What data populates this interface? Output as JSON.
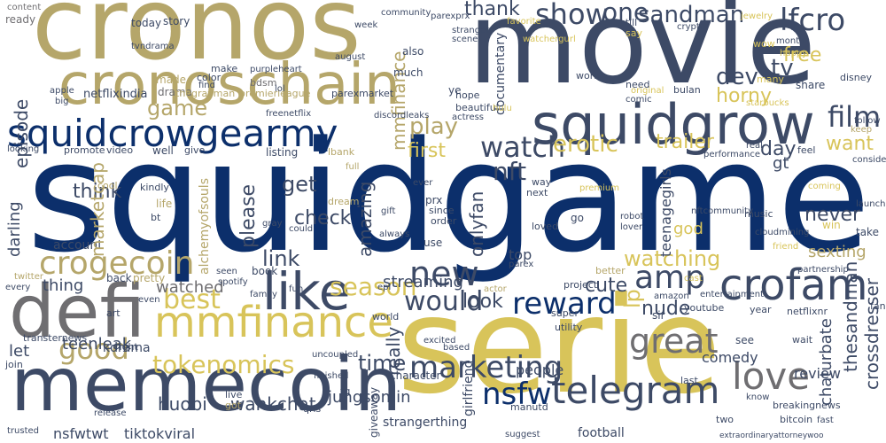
{
  "palette": {
    "navy": "#0c2f6b",
    "slate": "#3d4a66",
    "olive": "#b5a66a",
    "grey": "#6f6e71",
    "gold": "#d8c45a",
    "light_gold": "#e6d98d",
    "background": "#ffffff"
  },
  "words": {
    "squidgame": "squidgame",
    "serie": "serie",
    "movie": "movie",
    "cronos": "cronos",
    "memecoin": "memecoin",
    "cronoschain": "cronoschain",
    "defi": "defi",
    "squidgrow": "squidgrow",
    "squidcrowgearmy": "squidcrowgearmy",
    "like": "like",
    "mmfinance": "mmfinance",
    "crofam": "crofam",
    "telegram": "telegram",
    "crogecoin": "crogecoin",
    "lfcro": "lfcro",
    "tokenomics": "tokenomics",
    "marketing": "marketing",
    "reward": "reward",
    "watch": "watch",
    "new": "new",
    "nsfw": "nsfw",
    "love": "love",
    "great": "great",
    "season": "season",
    "amp": "amp",
    "film": "film",
    "show": "show",
    "good": "good",
    "best": "best",
    "would": "would",
    "game": "game",
    "episode": "episode",
    "play": "play",
    "nft": "nft",
    "thesandman": "thesandman",
    "sandman": "sandman",
    "erotic": "erotic",
    "watching": "watching",
    "one": "one",
    "chaturbate": "chaturbate",
    "marketcap": "marketcap",
    "teenleak": "teenleak",
    "wankchat": "wankchat",
    "jungsomin": "jungsomin",
    "tiktokviral": "tiktokviral",
    "crossdresser": "crossdresser",
    "time": "time",
    "really": "really",
    "cute": "cute",
    "get": "get",
    "link": "link",
    "look": "look",
    "check": "check",
    "please": "please",
    "lp": "lp",
    "girlfriend": "girlfriend",
    "alchemyofsouls": "alchemyofsouls",
    "darling": "darling",
    "dev": "dev",
    "tv": "tv",
    "free": "free",
    "want": "want",
    "day": "day",
    "trailer": "trailer",
    "horny": "horny",
    "first": "first",
    "amazing": "amazing",
    "think": "think",
    "drama": "drama",
    "netflixindia": "netflixindia",
    "nsfwtwt": "nsfwtwt",
    "never": "never",
    "nude": "nude",
    "streaming": "streaming",
    "onlyfan": "onlyfan",
    "thank": "thank",
    "made": "made",
    "documentary": "documentary",
    "strangerthing": "strangerthing",
    "huobi": "huobi",
    "teenagegirls": "teenagegirls",
    "watched": "watched",
    "thing": "thing",
    "sexting": "sexting",
    "cool": "cool",
    "review": "review",
    "football": "football",
    "kdrama": "kdrama",
    "account": "account",
    "shefalishah": "shefalishah",
    "comedy": "comedy",
    "let": "let",
    "gt": "gt",
    "top": "top",
    "ready": "ready",
    "content": "content",
    "today": "today",
    "parexprx": "parexprx",
    "story": "story",
    "tvndrama": "tvndrama",
    "thegrayman": "thegrayman",
    "premierleague": "premierleague",
    "parexmarket": "parexmarket",
    "purpleheart": "purpleheart",
    "bdsm": "bdsm",
    "make": "make",
    "find": "find",
    "color": "color",
    "also": "also",
    "much": "much",
    "ye": "ye",
    "hope": "hope",
    "scene": "scene",
    "stranger": "stranger",
    "community": "community",
    "week": "week",
    "august": "august",
    "apple": "apple",
    "lol": "lol",
    "freenetflix": "freenetflix",
    "netflixlovers": "netflixlovers",
    "discordleaks": "discordleaks",
    "beautiful": "beautiful",
    "hulu": "hulu",
    "actress": "actress",
    "work": "work",
    "need": "need",
    "bulan": "bulan",
    "many": "many",
    "share": "share",
    "month": "month",
    "disney": "disney",
    "wow": "wow",
    "happy": "happy",
    "jewelry": "jewelry",
    "crypto": "crypto",
    "still": "still",
    "say": "say",
    "favorite": "favorite",
    "watchergurl": "watchergurl",
    "comic": "comic",
    "original": "original",
    "looking": "looking",
    "promote": "promote",
    "video": "video",
    "well": "well",
    "give": "give",
    "listing": "listing",
    "lbank": "lbank",
    "ever": "ever",
    "full": "full",
    "performance": "performance",
    "feel": "feel",
    "premium": "premium",
    "life": "life",
    "kindly": "kindly",
    "bt": "bt",
    "dream": "dream",
    "gift": "gift",
    "prx": "prx",
    "since": "since",
    "order": "order",
    "gray": "gray",
    "could": "could",
    "go": "go",
    "god": "god",
    "win": "win",
    "music": "music",
    "coming": "coming",
    "launch": "launch",
    "cloudmining": "cloudmining",
    "take": "take",
    "friend": "friend",
    "use": "use",
    "always": "always",
    "way": "way",
    "next": "next",
    "robot": "robot",
    "loved": "loved",
    "lover": "lover",
    "nftcommunity": "nftcommunity",
    "partnership": "partnership",
    "entertainment": "entertainment",
    "book": "book",
    "family": "family",
    "fun": "fun",
    "spotify": "spotify",
    "seen": "seen",
    "back": "back",
    "pretty": "pretty",
    "epl": "epl",
    "twitter": "twitter",
    "every": "every",
    "art": "art",
    "even": "even",
    "transternews": "transternews",
    "world": "world",
    "project": "project",
    "better": "better",
    "parex": "parex",
    "actor": "actor",
    "amazon": "amazon",
    "youtube": "youtube",
    "sir": "sir",
    "super": "super",
    "utility": "utility",
    "cast": "cast",
    "netflixnr": "netflixnr",
    "year": "year",
    "wait": "wait",
    "see": "see",
    "last": "last",
    "character": "character",
    "people": "people",
    "excited": "excited",
    "based": "based",
    "right": "right",
    "join": "join",
    "release": "release",
    "live": "live",
    "tg": "tg",
    "got": "got",
    "qris": "qris",
    "finished": "finished",
    "uncoupled": "uncoupled",
    "breakingnews": "breakingnews",
    "bitcoin": "bitcoin",
    "two": "two",
    "manutd": "manutd",
    "giveaway": "giveaway",
    "suggest": "suggest",
    "know": "know",
    "fast": "fast",
    "trusted": "trusted",
    "extraordinaryattorneywoo": "extraordinaryattorneywoo",
    "big": "big",
    "fan": "fan",
    "keep": "keep",
    "follow": "follow",
    "real": "real",
    "starbucks": "starbucks",
    "consider": "consider"
  }
}
